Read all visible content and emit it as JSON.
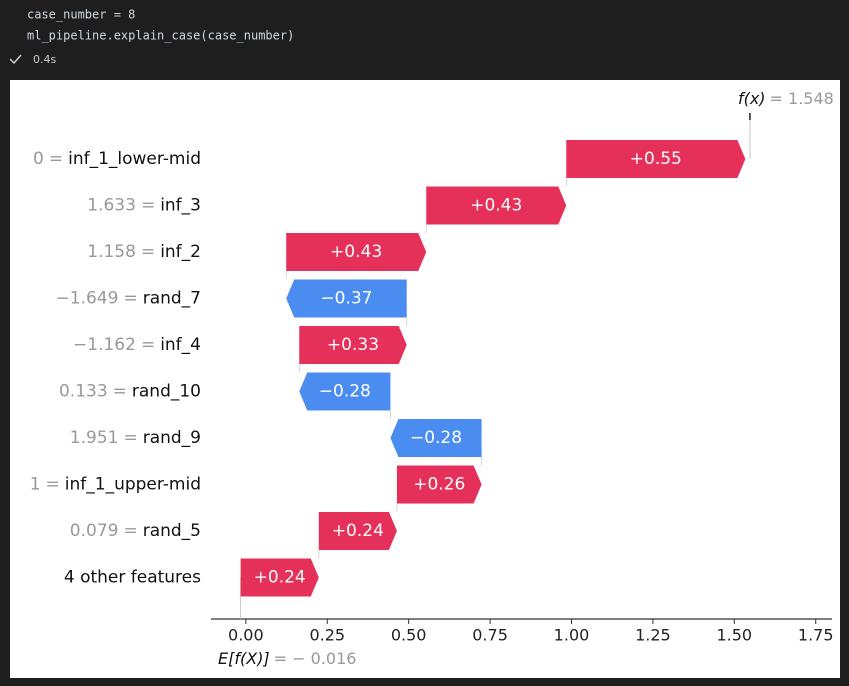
{
  "cell": {
    "code": [
      "case_number = 8",
      "ml_pipeline.explain_case(case_number)"
    ],
    "status": "0.4s"
  },
  "chart_data": {
    "type": "waterfall",
    "categories": [
      "inf_1_lower-mid",
      "inf_3",
      "inf_2",
      "rand_7",
      "inf_4",
      "rand_10",
      "rand_9",
      "inf_1_upper-mid",
      "rand_5",
      "4 other features"
    ],
    "feature_values": [
      "0",
      "1.633",
      "1.158",
      "−1.649",
      "−1.162",
      "0.133",
      "1.951",
      "1",
      "0.079",
      null
    ],
    "value_separator": "=",
    "values": [
      0.55,
      0.43,
      0.43,
      -0.37,
      0.33,
      -0.28,
      -0.28,
      0.26,
      0.24,
      0.24
    ],
    "value_labels": [
      "+0.55",
      "+0.43",
      "+0.43",
      "−0.37",
      "+0.33",
      "−0.28",
      "−0.28",
      "+0.26",
      "+0.24",
      "+0.24"
    ],
    "positive_color": "#e5305a",
    "negative_color": "#4a8cf0",
    "base_label": "E[f(X)]",
    "base_value": {
      "value": -0.016,
      "label": "= − 0.016"
    },
    "fx_label": "f(x)",
    "fx_value": {
      "value": 1.548,
      "label": "= 1.548"
    },
    "xlim": [
      -0.107,
      1.8
    ],
    "xticks": [
      {
        "value": 0,
        "label": "0.00"
      },
      {
        "value": 0.25,
        "label": "0.25"
      },
      {
        "value": 0.5,
        "label": "0.50"
      },
      {
        "value": 0.75,
        "label": "0.75"
      },
      {
        "value": 1,
        "label": "1.00"
      },
      {
        "value": 1.25,
        "label": "1.25"
      },
      {
        "value": 1.5,
        "label": "1.50"
      },
      {
        "value": 1.75,
        "label": "1.75"
      }
    ]
  }
}
